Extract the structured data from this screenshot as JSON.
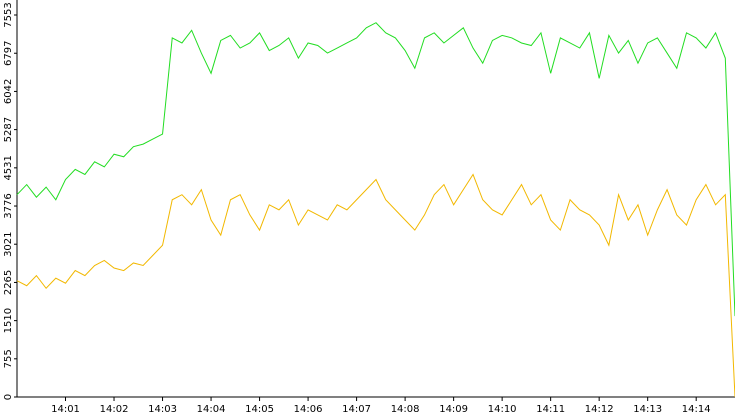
{
  "chart_data": {
    "type": "line",
    "x": [
      0,
      0.2,
      0.4,
      0.6,
      0.8,
      1,
      1.2,
      1.4,
      1.6,
      1.8,
      2,
      2.2,
      2.4,
      2.6,
      2.8,
      3,
      3.2,
      3.4,
      3.6,
      3.8,
      4,
      4.2,
      4.4,
      4.6,
      4.8,
      5,
      5.2,
      5.4,
      5.6,
      5.8,
      6,
      6.2,
      6.4,
      6.6,
      6.8,
      7,
      7.2,
      7.4,
      7.6,
      7.8,
      8,
      8.2,
      8.4,
      8.6,
      8.8,
      9,
      9.2,
      9.4,
      9.6,
      9.8,
      10,
      10.2,
      10.4,
      10.6,
      10.8,
      11,
      11.2,
      11.4,
      11.6,
      11.8,
      12,
      12.2,
      12.4,
      12.6,
      12.8,
      13,
      13.2,
      13.4,
      13.6,
      13.8,
      14,
      14.2,
      14.4,
      14.6,
      14.8
    ],
    "series": [
      {
        "color": "#22dd22",
        "values": [
          4000,
          4200,
          3950,
          4150,
          3900,
          4300,
          4500,
          4400,
          4650,
          4550,
          4800,
          4750,
          4950,
          5000,
          5100,
          5200,
          7100,
          7000,
          7250,
          6800,
          6400,
          7050,
          7150,
          6900,
          7000,
          7200,
          6850,
          6950,
          7100,
          6700,
          7000,
          6950,
          6800,
          6900,
          7000,
          7100,
          7300,
          7400,
          7200,
          7100,
          6850,
          6500,
          7100,
          7200,
          7000,
          7150,
          7300,
          6900,
          6600,
          7050,
          7150,
          7100,
          7000,
          6950,
          7200,
          6400,
          7100,
          7000,
          6900,
          7200,
          6300,
          7150,
          6800,
          7050,
          6600,
          7000,
          7100,
          6800,
          6500,
          7200,
          7100,
          6900,
          7200,
          6700,
          1600
        ]
      },
      {
        "color": "#f2b800",
        "values": [
          2300,
          2200,
          2400,
          2150,
          2350,
          2250,
          2500,
          2400,
          2600,
          2700,
          2550,
          2500,
          2650,
          2600,
          2800,
          3000,
          3900,
          4000,
          3800,
          4100,
          3500,
          3200,
          3900,
          4000,
          3600,
          3300,
          3800,
          3700,
          3900,
          3400,
          3700,
          3600,
          3500,
          3800,
          3700,
          3900,
          4100,
          4300,
          3900,
          3700,
          3500,
          3300,
          3600,
          4000,
          4200,
          3800,
          4100,
          4400,
          3900,
          3700,
          3600,
          3900,
          4200,
          3800,
          4000,
          3500,
          3300,
          3900,
          3700,
          3600,
          3400,
          3000,
          4000,
          3500,
          3800,
          3200,
          3700,
          4100,
          3600,
          3400,
          3900,
          4200,
          3800,
          4000,
          0
        ]
      }
    ],
    "xlim": [
      0,
      14.8
    ],
    "xticks": [
      {
        "value": 1,
        "label": "14:01"
      },
      {
        "value": 2,
        "label": "14:02"
      },
      {
        "value": 3,
        "label": "14:03"
      },
      {
        "value": 4,
        "label": "14:04"
      },
      {
        "value": 5,
        "label": "14:05"
      },
      {
        "value": 6,
        "label": "14:06"
      },
      {
        "value": 7,
        "label": "14:07"
      },
      {
        "value": 8,
        "label": "14:08"
      },
      {
        "value": 9,
        "label": "14:09"
      },
      {
        "value": 10,
        "label": "14:10"
      },
      {
        "value": 11,
        "label": "14:11"
      },
      {
        "value": 12,
        "label": "14:12"
      },
      {
        "value": 13,
        "label": "14:13"
      },
      {
        "value": 14,
        "label": "14:14"
      }
    ],
    "ylim": [
      0,
      7553
    ],
    "yticks": [
      0,
      755,
      1510,
      2265,
      3021,
      3776,
      4531,
      5287,
      6042,
      6797,
      7553
    ]
  }
}
